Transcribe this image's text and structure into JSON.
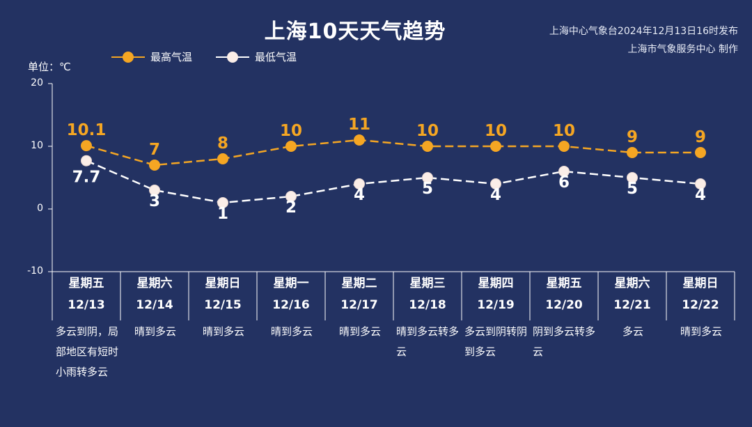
{
  "title": "上海10天天气趋势",
  "issuer": {
    "line1": "上海中心气象台2024年12月13日16时发布",
    "line2": "上海市气象服务中心 制作"
  },
  "unit_label": "单位：℃",
  "colors": {
    "background": "#233262",
    "high": "#f5a623",
    "low": "#ffffff"
  },
  "chart_data": {
    "type": "line",
    "ylim": [
      -10,
      20
    ],
    "yticks": [
      "20",
      "10",
      "0",
      "-10"
    ],
    "categories": [
      "12/13",
      "12/14",
      "12/15",
      "12/16",
      "12/17",
      "12/18",
      "12/19",
      "12/20",
      "12/21",
      "12/22"
    ],
    "series": [
      {
        "name": "最高气温",
        "values": [
          10.1,
          7,
          8,
          10,
          11,
          10,
          10,
          10,
          9,
          9
        ],
        "labels": [
          "10.1",
          "7",
          "8",
          "10",
          "11",
          "10",
          "10",
          "10",
          "9",
          "9"
        ]
      },
      {
        "name": "最低气温",
        "values": [
          7.7,
          3,
          1,
          2,
          4,
          5,
          4,
          6,
          5,
          4
        ],
        "labels": [
          "7.7",
          "3",
          "1",
          "2",
          "4",
          "5",
          "4",
          "6",
          "5",
          "4"
        ]
      }
    ],
    "legend_position": "top-left"
  },
  "days": [
    {
      "weekday": "星期五",
      "date": "12/13",
      "weather": "多云到阴，局部地区有短时小雨转多云"
    },
    {
      "weekday": "星期六",
      "date": "12/14",
      "weather": "晴到多云"
    },
    {
      "weekday": "星期日",
      "date": "12/15",
      "weather": "晴到多云"
    },
    {
      "weekday": "星期一",
      "date": "12/16",
      "weather": "晴到多云"
    },
    {
      "weekday": "星期二",
      "date": "12/17",
      "weather": "晴到多云"
    },
    {
      "weekday": "星期三",
      "date": "12/18",
      "weather": "晴到多云转多云"
    },
    {
      "weekday": "星期四",
      "date": "12/19",
      "weather": "多云到阴转阴到多云"
    },
    {
      "weekday": "星期五",
      "date": "12/20",
      "weather": "阴到多云转多云"
    },
    {
      "weekday": "星期六",
      "date": "12/21",
      "weather": "多云"
    },
    {
      "weekday": "星期日",
      "date": "12/22",
      "weather": "晴到多云"
    }
  ]
}
